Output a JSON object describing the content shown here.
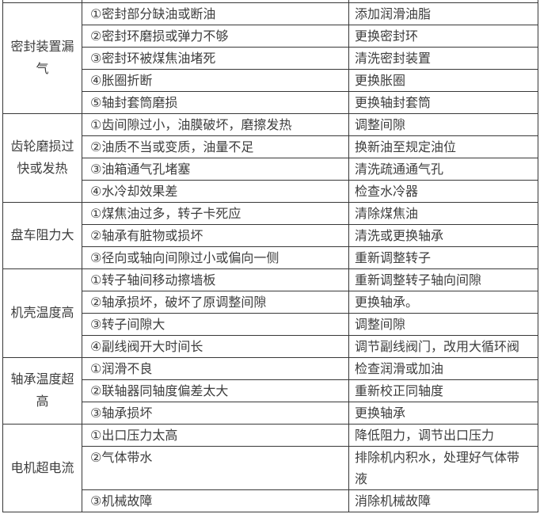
{
  "colors": {
    "border": "#383838",
    "text": "#3d3d3d",
    "background": "#ffffff"
  },
  "table": {
    "blocks": [
      {
        "category": "密封装置漏\n气",
        "items": [
          {
            "cause": "①密封部分缺油或断油",
            "solution": "添加润滑油脂"
          },
          {
            "cause": "②密封环磨损或弹力不够",
            "solution": "更换密封环"
          },
          {
            "cause": "③密封环被煤焦油堵死",
            "solution": "清洗密封装置"
          },
          {
            "cause": "④胀圈折断",
            "solution": "更换胀圈"
          },
          {
            "cause": "⑤轴封套筒磨损",
            "solution": "更换轴封套筒"
          }
        ]
      },
      {
        "category": "齿轮磨损过\n快或发热",
        "items": [
          {
            "cause": "①齿间隙过小，油膜破坏，磨擦发热",
            "solution": "调整间隙"
          },
          {
            "cause": "②油质不当或变质，油量不足",
            "solution": "换新油至规定油位"
          },
          {
            "cause": "③油箱通气孔堵塞",
            "solution": "清洗疏通通气孔"
          },
          {
            "cause": "④水冷却效果差",
            "solution": "检查水冷器"
          }
        ]
      },
      {
        "category": "盘车阻力大",
        "items": [
          {
            "cause": "①煤焦油过多，转子卡死应",
            "solution": "清除煤焦油"
          },
          {
            "cause": "②轴承有脏物或损坏",
            "solution": "清洗或更换轴承"
          },
          {
            "cause": "③径向或轴向间隙过小或偏向一侧",
            "solution": "重新调整转子"
          }
        ]
      },
      {
        "category": "机壳温度高",
        "items": [
          {
            "cause": "①转子轴间移动擦墙板",
            "solution": "重新调整转子轴向间隙"
          },
          {
            "cause": "②轴承损坏，破坏了原调整间隙",
            "solution": "更换轴承。"
          },
          {
            "cause": "③转子间隙大",
            "solution": "调整间隙"
          },
          {
            "cause": "④副线阀开大时间长",
            "solution": "调节副线阀门，改用大循环阀"
          }
        ]
      },
      {
        "category": "轴承温度超\n高",
        "items": [
          {
            "cause": "①润滑不良",
            "solution": "检查润滑或加油"
          },
          {
            "cause": "②联轴器同轴度偏差太大",
            "solution": "重新校正同轴度"
          },
          {
            "cause": "③轴承损坏",
            "solution": "更换轴承"
          }
        ]
      },
      {
        "category": "电机超电流",
        "items": [
          {
            "cause": "①出口压力太高",
            "solution": "降低阻力，调节出口压力"
          },
          {
            "cause": "②气体带水",
            "solution": "排除机内积水，处理好气体带\n液"
          },
          {
            "cause": "③机械故障",
            "solution": "消除机械故障"
          }
        ]
      }
    ]
  }
}
